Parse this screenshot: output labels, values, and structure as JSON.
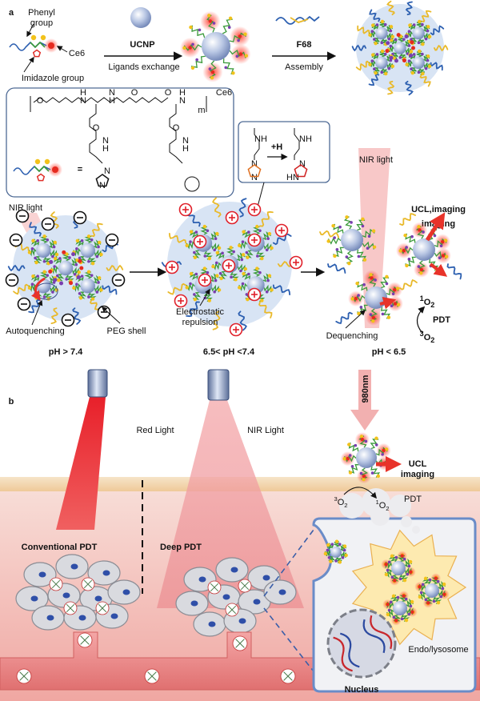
{
  "panel_a": {
    "label": "a",
    "phenyl_group": [
      "Phenyl",
      "group"
    ],
    "ce6": "Ce6",
    "imidazole_group": "Imidazole group",
    "ucnp": "UCNP",
    "ligands_exchange": "Ligands exchange",
    "f68": "F68",
    "assembly": "Assembly",
    "structure": {
      "atoms": [
        "O",
        "H",
        "N",
        "N",
        "H",
        "O",
        "O",
        "N",
        "H",
        "O",
        "N",
        "H",
        "O",
        "N",
        "H",
        "N",
        "N"
      ],
      "ce6": "Ce6",
      "m": "m",
      "equals": "="
    },
    "protonation": {
      "plus_h": "+H",
      "before_atoms": [
        "NH",
        "N",
        "N"
      ],
      "after_atoms": [
        "NH",
        "N",
        "HN"
      ]
    },
    "nir_light_left": "NIR light",
    "autoquenching": "Autoquenching",
    "peg_shell": "PEG shell",
    "electrostatic_repulsion": [
      "Electrostatic",
      "repulsion"
    ],
    "nir_light_right": "NIR light",
    "ucl_imaging": [
      "UCL",
      "imaging"
    ],
    "singlet_oxygen": {
      "sup": "1",
      "base": "O",
      "sub": "2"
    },
    "pdt": "PDT",
    "triplet_oxygen": {
      "sup": "3",
      "base": "O",
      "sub": "2"
    },
    "dequenching": "Dequenching",
    "ph_labels": [
      "pH > 7.4",
      "6.5< pH <7.4",
      "pH < 6.5"
    ]
  },
  "panel_b": {
    "label": "b",
    "red_light": "Red Light",
    "nir_light": "NIR Light",
    "wavelength": "980nm",
    "ucl_imaging": [
      "UCL",
      "imaging"
    ],
    "triplet_oxygen": {
      "sup": "3",
      "base": "O",
      "sub": "2"
    },
    "singlet_oxygen": {
      "sup": "1",
      "base": "O",
      "sub": "2"
    },
    "pdt": "PDT",
    "conventional_pdt": "Conventional PDT",
    "deep_pdt": "Deep PDT",
    "endo_lysosome": "Endo/lysosome",
    "nucleus": "Nucleus"
  }
}
